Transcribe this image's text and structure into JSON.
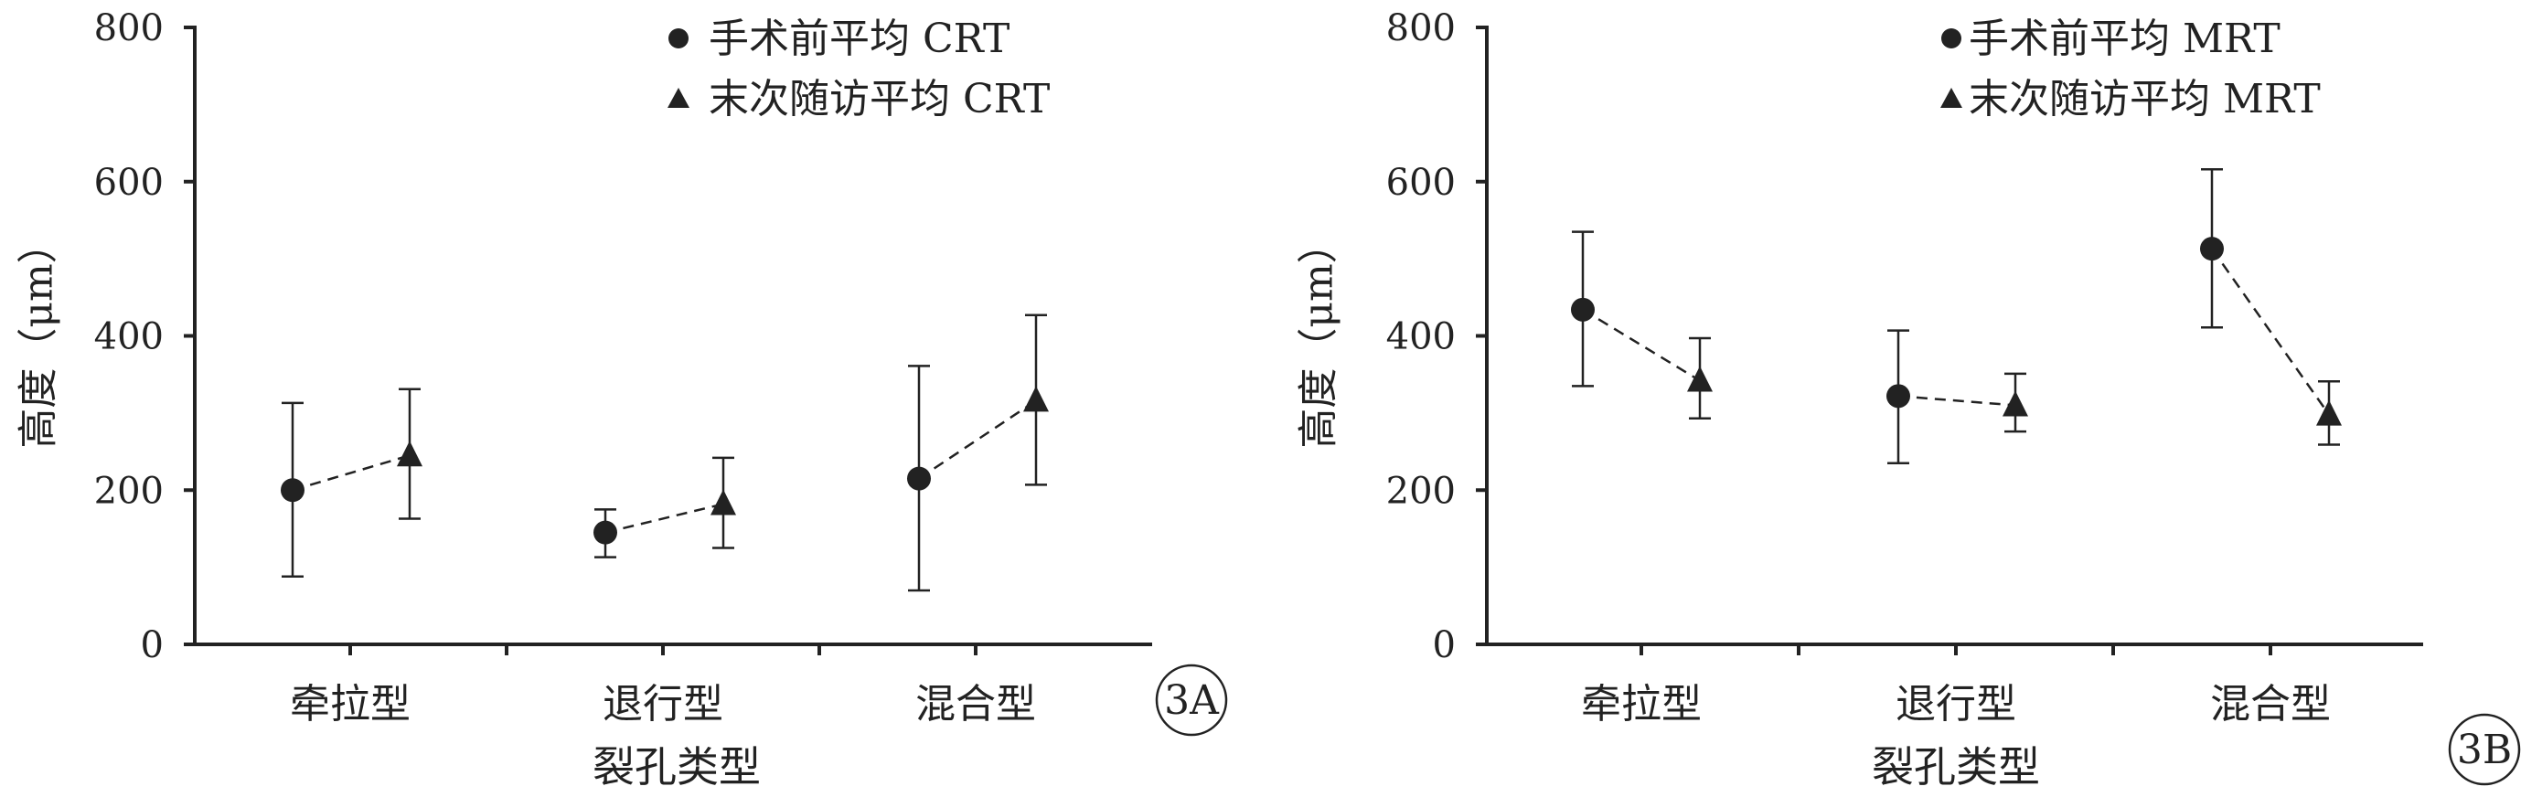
{
  "chart_data": [
    {
      "type": "scatter",
      "panel_label": "3A",
      "ylabel": "高度（μm）",
      "xlabel": "裂孔类型",
      "ylim": [
        0,
        800
      ],
      "yticks": [
        0,
        200,
        400,
        600,
        800
      ],
      "categories": [
        "牵拉型",
        "退行型",
        "混合型"
      ],
      "legend_position": "top-right",
      "series": [
        {
          "name": "手术前平均 CRT",
          "marker": "circle",
          "values": [
            200,
            145,
            215
          ],
          "err_low": [
            88,
            113,
            70
          ],
          "err_high": [
            313,
            175,
            361
          ]
        },
        {
          "name": "末次随访平均 CRT",
          "marker": "triangle",
          "values": [
            245,
            182,
            316
          ],
          "err_low": [
            163,
            125,
            207
          ],
          "err_high": [
            331,
            242,
            427
          ]
        }
      ]
    },
    {
      "type": "scatter",
      "panel_label": "3B",
      "ylabel": "高度（μm）",
      "xlabel": "裂孔类型",
      "ylim": [
        0,
        800
      ],
      "yticks": [
        0,
        200,
        400,
        600,
        800
      ],
      "categories": [
        "牵拉型",
        "退行型",
        "混合型"
      ],
      "legend_position": "top-right",
      "series": [
        {
          "name": "手术前平均 MRT",
          "marker": "circle",
          "values": [
            434,
            322,
            513
          ],
          "err_low": [
            335,
            235,
            411
          ],
          "err_high": [
            535,
            407,
            616
          ]
        },
        {
          "name": "末次随访平均 MRT",
          "marker": "triangle",
          "values": [
            342,
            310,
            298
          ],
          "err_low": [
            293,
            276,
            259
          ],
          "err_high": [
            397,
            351,
            341
          ]
        }
      ]
    }
  ]
}
